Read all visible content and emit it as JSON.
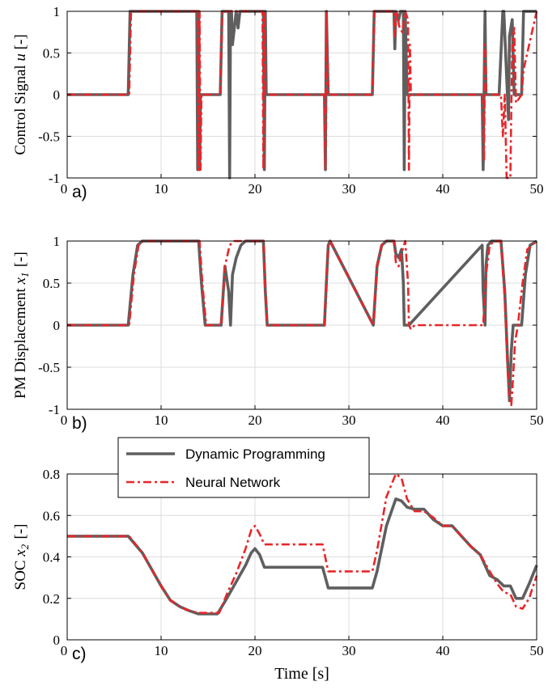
{
  "chart_data": [
    {
      "type": "line",
      "panel_label": "a)",
      "ylabel": "Control Signal u [-]",
      "xlabel": "",
      "xlim": [
        0,
        50
      ],
      "ylim": [
        -1,
        1
      ],
      "xticks": [
        "0",
        "10",
        "20",
        "30",
        "40",
        "50"
      ],
      "yticks": [
        "-1",
        "-0.5",
        "0",
        "0.5",
        "1"
      ],
      "grid": true,
      "series": [
        {
          "name": "Dynamic Programming",
          "color": "#5f5f5f",
          "x": [
            0,
            6.5,
            6.7,
            13.8,
            13.9,
            14.0,
            14.1,
            14.2,
            16.3,
            16.5,
            17.2,
            17.3,
            17.4,
            17.5,
            17.6,
            18.0,
            18.2,
            18.4,
            20.9,
            21.0,
            21.1,
            21.2,
            27.4,
            27.5,
            27.6,
            27.8,
            32.5,
            32.7,
            34.8,
            34.9,
            35.0,
            35.3,
            35.5,
            35.8,
            35.9,
            36.0,
            36.2,
            36.4,
            44.2,
            44.3,
            44.5,
            44.6,
            46.0,
            46.4,
            46.5,
            47.0,
            47.1,
            47.4,
            47.6,
            47.8,
            48.4,
            48.6,
            50
          ],
          "y": [
            0,
            0,
            1,
            1,
            -0.9,
            1,
            -0.9,
            0,
            0,
            1,
            1,
            -1,
            1,
            1,
            0.6,
            1,
            0.8,
            1,
            1,
            -0.9,
            1,
            0,
            0,
            -0.9,
            1,
            0,
            0,
            1,
            1,
            0.55,
            1,
            0.9,
            1,
            1,
            -0.9,
            1,
            0,
            0,
            0,
            -0.9,
            1,
            0,
            0,
            1,
            1,
            -0.3,
            0.7,
            0.9,
            0,
            0,
            0,
            1,
            1
          ]
        },
        {
          "name": "Neural Network",
          "color": "#e8262a",
          "x": [
            0,
            6.6,
            6.8,
            13.9,
            14.0,
            14.1,
            14.2,
            14.3,
            16.3,
            16.5,
            20.8,
            20.9,
            21.0,
            21.1,
            27.4,
            27.5,
            27.6,
            27.8,
            32.5,
            32.7,
            34.8,
            34.9,
            35.1,
            35.4,
            35.7,
            36.0,
            36.3,
            36.4,
            36.5,
            36.6,
            44.3,
            44.4,
            44.5,
            44.6,
            46.2,
            46.4,
            46.6,
            46.8,
            47.0,
            47.2,
            47.4,
            47.6,
            47.8,
            48.4,
            48.6,
            50
          ],
          "y": [
            0,
            0,
            1,
            1,
            -0.9,
            1,
            -0.9,
            0,
            0,
            1,
            1,
            -0.9,
            1,
            0,
            0,
            -0.9,
            1,
            0,
            0,
            1,
            1,
            0.7,
            1,
            0.8,
            0.75,
            1,
            0.9,
            -0.9,
            0.6,
            0,
            0,
            -0.8,
            0.6,
            0,
            0,
            -0.5,
            0,
            -1,
            -1,
            -1,
            0.6,
            0.8,
            -0.1,
            0,
            0.3,
            1
          ]
        }
      ]
    },
    {
      "type": "line",
      "panel_label": "b)",
      "ylabel": "PM Displacement x_1 [-]",
      "xlabel": "",
      "xlim": [
        0,
        50
      ],
      "ylim": [
        -1,
        1
      ],
      "xticks": [
        "0",
        "10",
        "20",
        "30",
        "40",
        "50"
      ],
      "yticks": [
        "-1",
        "-0.5",
        "0",
        "0.5",
        "1"
      ],
      "grid": true,
      "series": [
        {
          "name": "Dynamic Programming",
          "color": "#5f5f5f",
          "x": [
            0,
            6.5,
            7.0,
            7.5,
            8.0,
            14.0,
            14.3,
            14.7,
            16.4,
            16.8,
            17.2,
            17.4,
            17.6,
            18.0,
            18.5,
            19.0,
            20.9,
            21.1,
            21.3,
            27.4,
            27.6,
            27.8,
            28.0,
            32.6,
            33.0,
            33.5,
            34.0,
            34.8,
            35.0,
            35.3,
            35.6,
            35.8,
            35.9,
            36.1,
            36.4,
            44.2,
            44.3,
            44.5,
            44.6,
            44.8,
            45.2,
            45.7,
            46.2,
            46.6,
            46.9,
            47.1,
            47.3,
            47.5,
            47.8,
            48.4,
            48.8,
            49.3,
            50
          ],
          "y": [
            0,
            0,
            0.6,
            0.95,
            1,
            1,
            0.5,
            0,
            0,
            0.7,
            0.4,
            0,
            0.6,
            0.8,
            0.95,
            1,
            1,
            0.4,
            0,
            0,
            0.5,
            0.95,
            1,
            0,
            0.7,
            0.95,
            1,
            1,
            0.85,
            0.8,
            0.9,
            0.5,
            0,
            0,
            0,
            0.95,
            0.4,
            0,
            0.7,
            0.95,
            1,
            1,
            1,
            0.4,
            -0.4,
            -0.9,
            -0.3,
            0,
            0,
            0,
            0.6,
            0.95,
            1
          ]
        },
        {
          "name": "Neural Network",
          "color": "#e8262a",
          "x": [
            0,
            6.6,
            7.1,
            7.6,
            8.1,
            14.1,
            14.4,
            14.8,
            16.4,
            16.8,
            17.3,
            17.8,
            18.5,
            20.9,
            21.1,
            21.3,
            27.4,
            27.6,
            27.8,
            28.0,
            32.6,
            33.0,
            33.5,
            34.0,
            34.8,
            35.0,
            35.3,
            35.6,
            36.0,
            36.3,
            36.4,
            36.6,
            37.0,
            44.3,
            44.6,
            45.0,
            45.5,
            46.2,
            46.6,
            46.9,
            47.1,
            47.3,
            47.5,
            47.7,
            48.0,
            48.5,
            49.0,
            50
          ],
          "y": [
            0,
            0,
            0.6,
            0.95,
            1,
            1,
            0.5,
            0,
            0,
            0.7,
            0.95,
            1,
            1,
            1,
            0.4,
            0,
            0,
            0.5,
            0.95,
            1,
            0,
            0.7,
            0.95,
            1,
            1,
            0.75,
            0.7,
            0.85,
            1,
            0.5,
            0,
            -0.05,
            0,
            0,
            0.6,
            0.95,
            1,
            1,
            0.3,
            -0.5,
            -0.85,
            -0.95,
            -0.6,
            -0.2,
            0,
            0.5,
            0.9,
            1
          ]
        }
      ]
    },
    {
      "type": "line",
      "panel_label": "c)",
      "ylabel": "SOC x_2 [-]",
      "xlabel": "Time [s]",
      "xlim": [
        0,
        50
      ],
      "ylim": [
        0,
        0.8
      ],
      "xticks": [
        "0",
        "10",
        "20",
        "30",
        "40",
        "50"
      ],
      "yticks": [
        "0",
        "0.2",
        "0.4",
        "0.6",
        "0.8"
      ],
      "grid": true,
      "legend": {
        "position": "top-left",
        "entries": [
          "Dynamic Programming",
          "Neural Network"
        ]
      },
      "series": [
        {
          "name": "Dynamic Programming",
          "color": "#5f5f5f",
          "x": [
            0,
            6.5,
            8,
            10,
            11,
            12,
            13,
            14,
            16,
            17,
            18,
            19,
            19.6,
            20,
            20.5,
            21,
            27.2,
            27.8,
            32.5,
            33,
            34,
            35,
            35.6,
            36.2,
            37,
            38,
            39,
            40,
            41,
            42,
            43,
            44,
            45,
            45.8,
            46.5,
            47.2,
            47.8,
            48.5,
            49.2,
            50
          ],
          "y": [
            0.5,
            0.5,
            0.42,
            0.26,
            0.19,
            0.16,
            0.14,
            0.125,
            0.125,
            0.2,
            0.28,
            0.36,
            0.42,
            0.44,
            0.41,
            0.35,
            0.35,
            0.25,
            0.25,
            0.33,
            0.55,
            0.68,
            0.67,
            0.64,
            0.63,
            0.63,
            0.58,
            0.55,
            0.55,
            0.5,
            0.45,
            0.41,
            0.31,
            0.29,
            0.26,
            0.26,
            0.2,
            0.2,
            0.27,
            0.36
          ]
        },
        {
          "name": "Neural Network",
          "color": "#e8262a",
          "x": [
            0,
            6.6,
            8,
            10,
            11,
            12,
            13,
            14,
            16.2,
            17,
            18,
            19,
            19.6,
            20,
            20.5,
            21,
            27.2,
            27.8,
            32.5,
            33,
            34,
            35,
            35.6,
            36.2,
            37,
            38,
            39,
            40,
            41,
            42,
            43,
            44,
            45,
            45.8,
            46.5,
            47.2,
            47.8,
            48.5,
            49.2,
            50
          ],
          "y": [
            0.5,
            0.5,
            0.42,
            0.26,
            0.19,
            0.16,
            0.14,
            0.13,
            0.13,
            0.22,
            0.32,
            0.44,
            0.53,
            0.55,
            0.51,
            0.46,
            0.46,
            0.33,
            0.33,
            0.43,
            0.69,
            0.8,
            0.78,
            0.68,
            0.62,
            0.62,
            0.59,
            0.55,
            0.55,
            0.5,
            0.45,
            0.41,
            0.33,
            0.27,
            0.23,
            0.22,
            0.16,
            0.15,
            0.2,
            0.31
          ]
        }
      ]
    }
  ]
}
